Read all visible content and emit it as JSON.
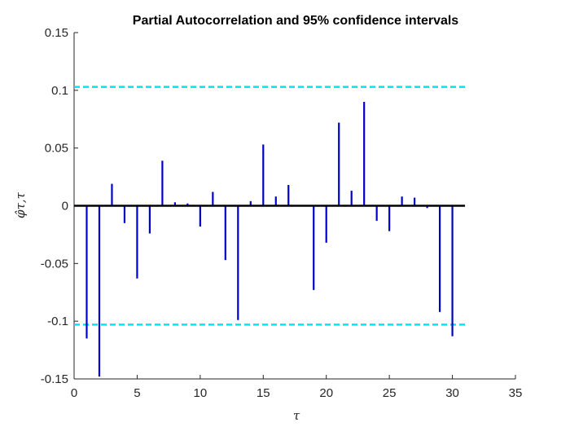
{
  "chart_data": {
    "type": "stem",
    "title": "Partial Autocorrelation and 95% confidence intervals",
    "xlabel": "τ",
    "ylabel": "φ̂τ,τ",
    "xlim": [
      0,
      35
    ],
    "ylim": [
      -0.15,
      0.15
    ],
    "x_ticks": [
      0,
      5,
      10,
      15,
      20,
      25,
      30,
      35
    ],
    "x_tick_labels": [
      "0",
      "5",
      "10",
      "15",
      "20",
      "25",
      "30",
      "35"
    ],
    "y_ticks": [
      -0.15,
      -0.1,
      -0.05,
      0,
      0.05,
      0.1,
      0.15
    ],
    "y_tick_labels": [
      "-0.15",
      "-0.1",
      "-0.05",
      "0",
      "0.05",
      "0.1",
      "0.15"
    ],
    "series": [
      {
        "x": [
          1,
          2,
          3,
          4,
          5,
          6,
          7,
          8,
          9,
          10,
          11,
          12,
          13,
          14,
          15,
          16,
          17,
          18,
          19,
          20,
          21,
          22,
          23,
          24,
          25,
          26,
          27,
          28,
          29,
          30
        ],
        "y": [
          -0.115,
          -0.148,
          0.019,
          -0.015,
          -0.063,
          -0.024,
          0.039,
          0.003,
          0.002,
          -0.018,
          0.012,
          -0.047,
          -0.099,
          0.004,
          0.053,
          0.008,
          0.018,
          0.0,
          -0.073,
          -0.032,
          0.072,
          0.013,
          0.09,
          -0.013,
          -0.022,
          0.008,
          0.007,
          -0.002,
          -0.092,
          -0.113
        ]
      }
    ],
    "zero_line": {
      "x": [
        0,
        31
      ],
      "y": 0
    },
    "confidence_bounds": {
      "upper": 0.103,
      "lower": -0.103,
      "x": [
        0,
        31
      ]
    },
    "grid": false,
    "colors": {
      "stems": "#0000cc",
      "zero_line": "#000000",
      "bounds": "#00e5ee",
      "axis": "#262626"
    }
  }
}
